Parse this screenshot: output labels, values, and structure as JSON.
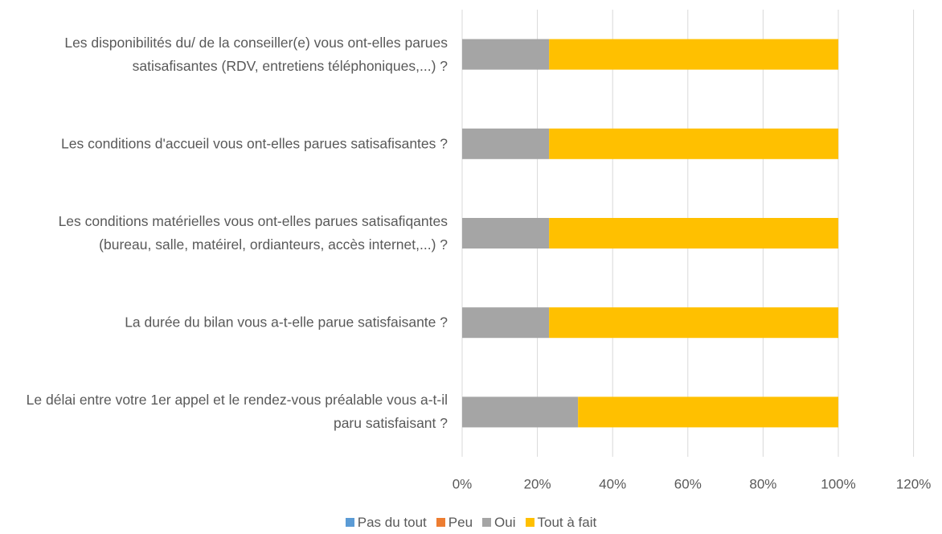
{
  "chart_data": {
    "type": "stacked-bar-horizontal",
    "categories": [
      "Les disponibilités du/ de la conseiller(e) vous ont-elles parues satisafisantes (RDV, entretiens téléphoniques,...) ?",
      "Les conditions d'accueil vous ont-elles parues satisafisantes ?",
      "Les conditions matérielles vous ont-elles parues satisafiqantes (bureau, salle, matéirel, ordianteurs, accès internet,...) ?",
      "La durée du bilan vous a-t-elle parue satisfaisante ?",
      "Le délai entre votre 1er appel et le rendez-vous préalable vous a-t-il paru satisfaisant ?"
    ],
    "series": [
      {
        "name": "Pas du tout",
        "color": "#5b9bd5",
        "values": [
          0,
          0,
          0,
          0,
          0
        ]
      },
      {
        "name": "Peu",
        "color": "#ed7d31",
        "values": [
          0,
          0,
          0,
          0,
          0
        ]
      },
      {
        "name": "Oui",
        "color": "#a5a5a5",
        "values": [
          23.1,
          23.1,
          23.1,
          23.1,
          30.8
        ]
      },
      {
        "name": "Tout à fait",
        "color": "#ffc000",
        "values": [
          76.9,
          76.9,
          76.9,
          76.9,
          69.2
        ]
      }
    ],
    "xlim": [
      0,
      120
    ],
    "xticks": [
      {
        "value": 0,
        "label": "0%"
      },
      {
        "value": 20,
        "label": "20%"
      },
      {
        "value": 40,
        "label": "40%"
      },
      {
        "value": 60,
        "label": "60%"
      },
      {
        "value": 80,
        "label": "80%"
      },
      {
        "value": 100,
        "label": "100%"
      },
      {
        "value": 120,
        "label": "120%"
      }
    ],
    "grid": true,
    "legend": "bottom"
  }
}
